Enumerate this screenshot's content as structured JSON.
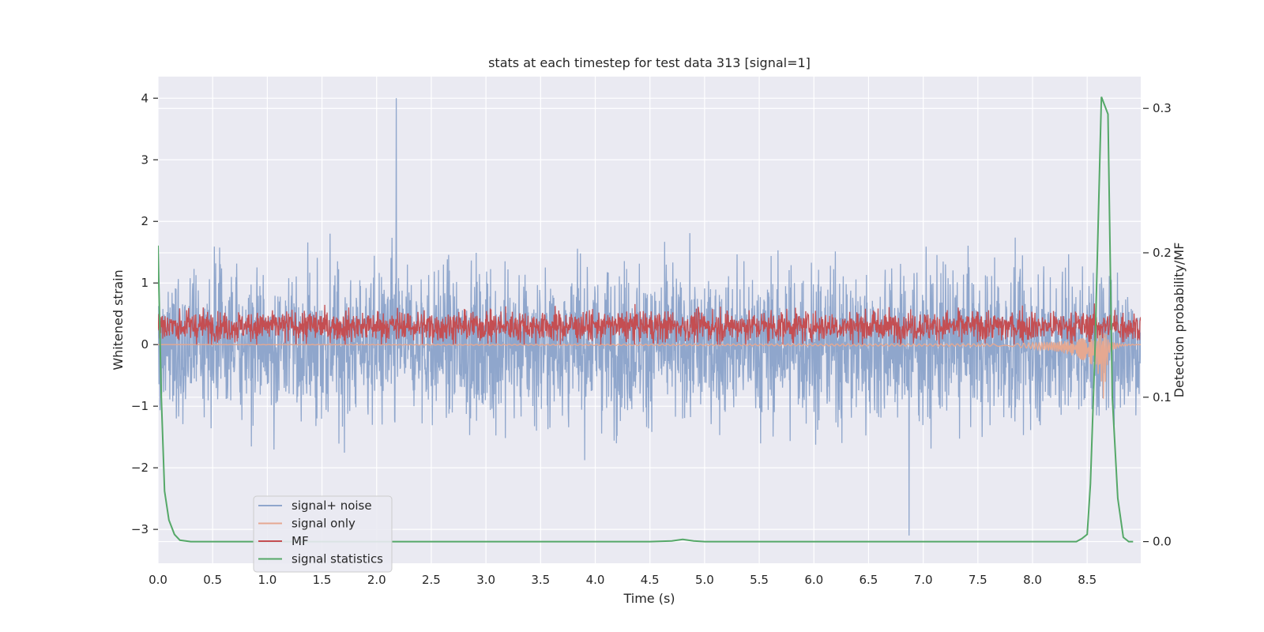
{
  "chart_data": {
    "type": "line",
    "title": "stats at each timestep for test data 313 [signal=1]",
    "xlabel": "Time (s)",
    "ylabel": "Whitened strain",
    "y2label": "Detection probability/MF",
    "xlim": [
      0,
      8.99
    ],
    "ylim": [
      -3.55,
      4.35
    ],
    "y2lim": [
      -0.015,
      0.322
    ],
    "xticks": [
      "0.0",
      "0.5",
      "1.0",
      "1.5",
      "2.0",
      "2.5",
      "3.0",
      "3.5",
      "4.0",
      "4.5",
      "5.0",
      "5.5",
      "6.0",
      "6.5",
      "7.0",
      "7.5",
      "8.0",
      "8.5"
    ],
    "yticks": [
      "−3",
      "−2",
      "−1",
      "0",
      "1",
      "2",
      "3",
      "4"
    ],
    "y2ticks": [
      "0.0",
      "0.1",
      "0.2",
      "0.3"
    ],
    "grid": true,
    "legend_position": "lower-left",
    "colors": {
      "background": "#eaeaf2",
      "grid": "#ffffff",
      "signal_noise": "#8fa6cc",
      "signal_only": "#e5a891",
      "mf": "#c44e52",
      "stats": "#55a868"
    },
    "series": [
      {
        "name": "signal+ noise",
        "axis": "left",
        "description_values": {
          "x_range": [
            0,
            8.99
          ],
          "typical_range": [
            -2.5,
            2.5
          ],
          "peak_max": 4.0,
          "peak_max_x": 2.18,
          "peak_min": -3.1,
          "peak_min_x": 6.87
        }
      },
      {
        "name": "signal only",
        "axis": "left",
        "x": [
          0,
          7.8,
          8.0,
          8.2,
          8.35,
          8.45,
          8.55,
          8.6,
          8.63,
          8.65,
          8.68,
          8.7,
          8.8,
          8.99
        ],
        "envelope": [
          0,
          0.02,
          0.05,
          0.08,
          0.12,
          0.18,
          0.25,
          0.35,
          0.45,
          0.65,
          0.3,
          0.1,
          0.02,
          0
        ]
      },
      {
        "name": "MF",
        "axis": "left",
        "description_values": {
          "x_range": [
            0,
            8.99
          ],
          "typical_range": [
            0.0,
            0.7
          ],
          "peak_max": 0.95
        }
      },
      {
        "name": "signal statistics",
        "axis": "right",
        "x": [
          0,
          0.03,
          0.06,
          0.1,
          0.15,
          0.2,
          0.3,
          0.5,
          1.0,
          2.0,
          3.0,
          4.0,
          4.5,
          4.7,
          4.8,
          4.9,
          5.0,
          6.0,
          7.0,
          8.0,
          8.4,
          8.45,
          8.5,
          8.53,
          8.57,
          8.63,
          8.69,
          8.73,
          8.78,
          8.83,
          8.88,
          8.92
        ],
        "y": [
          0.205,
          0.1,
          0.035,
          0.015,
          0.005,
          0.001,
          0.0,
          0.0,
          0.0,
          0.0,
          0.0,
          0.0,
          0.0,
          0.0005,
          0.0015,
          0.0005,
          0.0,
          0.0,
          0.0,
          0.0,
          0.0,
          0.002,
          0.005,
          0.04,
          0.13,
          0.308,
          0.296,
          0.1,
          0.03,
          0.003,
          0.0,
          0.0
        ]
      }
    ]
  }
}
